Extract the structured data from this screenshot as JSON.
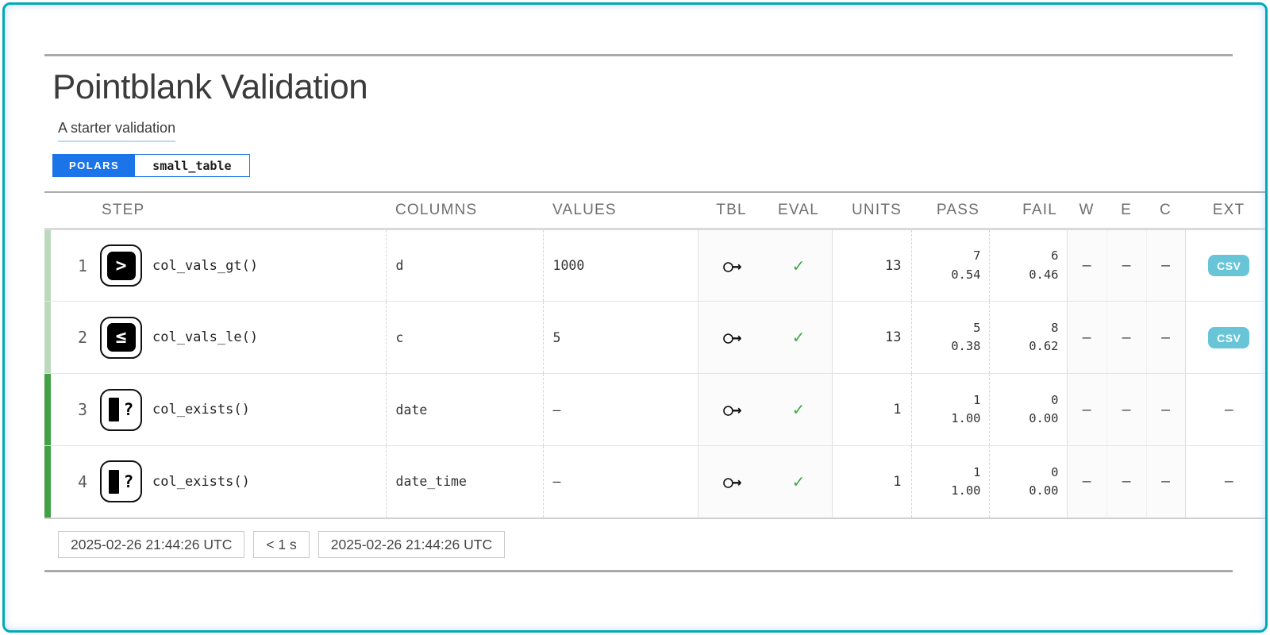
{
  "report": {
    "title": "Pointblank Validation",
    "subtitle": "A starter validation",
    "badges": {
      "engine": "POLARS",
      "table": "small_table"
    },
    "table": {
      "headers": [
        "STEP",
        "COLUMNS",
        "VALUES",
        "TBL",
        "EVAL",
        "UNITS",
        "PASS",
        "FAIL",
        "W",
        "E",
        "C",
        "EXT"
      ],
      "rows": [
        {
          "step": "1",
          "icon": "boxed",
          "icon_name": "col-vals-gt-icon",
          "icon_glyph": ">",
          "name": "col_vals_gt()",
          "columns": "d",
          "values": "1000",
          "tbl": "○→",
          "eval": "✓",
          "units": "13",
          "pass_n": "7",
          "pass_frac": "0.54",
          "fail_n": "6",
          "fail_frac": "0.46",
          "w": "—",
          "e": "—",
          "c": "—",
          "ext": "CSV",
          "severity": "light"
        },
        {
          "step": "2",
          "icon": "boxed",
          "icon_name": "col-vals-le-icon",
          "icon_glyph": "≤",
          "name": "col_vals_le()",
          "columns": "c",
          "values": "5",
          "tbl": "○→",
          "eval": "✓",
          "units": "13",
          "pass_n": "5",
          "pass_frac": "0.38",
          "fail_n": "8",
          "fail_frac": "0.62",
          "w": "—",
          "e": "—",
          "c": "—",
          "ext": "CSV",
          "severity": "light"
        },
        {
          "step": "3",
          "icon": "exists",
          "icon_name": "col-exists-icon",
          "icon_glyph": "?",
          "name": "col_exists()",
          "columns": "date",
          "values": "—",
          "tbl": "○→",
          "eval": "✓",
          "units": "1",
          "pass_n": "1",
          "pass_frac": "1.00",
          "fail_n": "0",
          "fail_frac": "0.00",
          "w": "—",
          "e": "—",
          "c": "—",
          "ext": "—",
          "severity": "dark"
        },
        {
          "step": "4",
          "icon": "exists",
          "icon_name": "col-exists-icon",
          "icon_glyph": "?",
          "name": "col_exists()",
          "columns": "date_time",
          "values": "—",
          "tbl": "○→",
          "eval": "✓",
          "units": "1",
          "pass_n": "1",
          "pass_frac": "1.00",
          "fail_n": "0",
          "fail_frac": "0.00",
          "w": "—",
          "e": "—",
          "c": "—",
          "ext": "—",
          "severity": "dark"
        }
      ]
    },
    "footer": {
      "start_time": "2025-02-26 21:44:26 UTC",
      "duration": "< 1 s",
      "end_time": "2025-02-26 21:44:26 UTC"
    },
    "colors": {
      "frame_teal": "#00a9b6",
      "accent_blue": "#1b75e8",
      "subtitle_underline": "#b9dcef",
      "csv_badge": "#68c5d8",
      "check_green": "#3fae49",
      "severity_light_green": "#bdd9bd",
      "severity_dark_green": "#43a047"
    }
  }
}
